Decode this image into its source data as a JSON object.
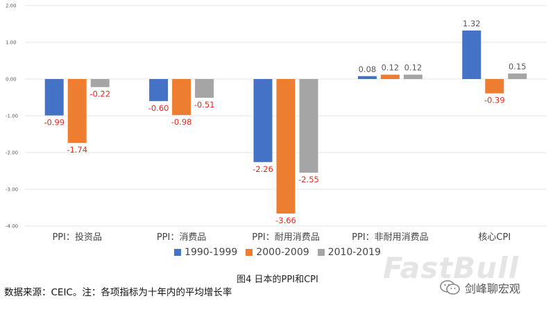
{
  "chart_data": {
    "type": "bar",
    "categories": [
      "PPI：投资品",
      "PPI：消费品",
      "PPI：耐用消费品",
      "PPI：非耐用消费品",
      "核心CPI"
    ],
    "series": [
      {
        "name": "1990-1999",
        "color": "#4472c4",
        "values": [
          -0.99,
          -0.6,
          -2.26,
          0.08,
          1.32
        ],
        "labels": [
          "-0.99",
          "-0.60",
          "-2.26",
          "0.08",
          "1.32"
        ]
      },
      {
        "name": "2000-2009",
        "color": "#ed7d31",
        "values": [
          -1.74,
          -0.98,
          -3.66,
          0.12,
          -0.39
        ],
        "labels": [
          "-1.74",
          "-0.98",
          "-3.66",
          "0.12",
          "-0.39"
        ]
      },
      {
        "name": "2010-2019",
        "color": "#a5a5a5",
        "values": [
          -0.22,
          -0.51,
          -2.55,
          0.12,
          0.15
        ],
        "labels": [
          "-0.22",
          "-0.51",
          "-2.55",
          "0.12",
          "0.15"
        ]
      }
    ],
    "y_ticks": [
      "2.00",
      "1.00",
      "0.00",
      "-1.00",
      "-2.00",
      "-3.00",
      "-4.00"
    ],
    "ylim": [
      -4,
      2
    ],
    "grid": true,
    "legend_position": "bottom",
    "label_colors": {
      "positive": "#595959",
      "negative": "#e8291b"
    }
  },
  "caption": "图4 日本的PPI和CPI",
  "source_note": "数据来源：CEIC。注：各项指标为十年内的平均增长率",
  "watermark": "FastBull",
  "brand": {
    "name": "剑峰聊宏观",
    "icon": "wechat-icon"
  }
}
